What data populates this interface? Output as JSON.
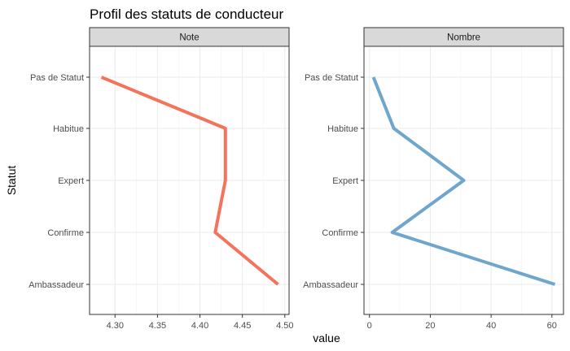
{
  "chart_data": {
    "type": "line",
    "title": "Profil des  statuts de conducteur",
    "xlabel": "value",
    "ylabel": "Statut",
    "categories": [
      "Ambassadeur",
      "Confirme",
      "Expert",
      "Habitue",
      "Pas de Statut"
    ],
    "grid": true,
    "legend": "none",
    "panels": [
      {
        "name": "Note",
        "color": "#f4735b",
        "xlim": [
          4.27,
          4.505
        ],
        "xticks": [
          4.3,
          4.35,
          4.4,
          4.45,
          4.5
        ],
        "xtick_labels": [
          "4.30",
          "4.35",
          "4.40",
          "4.45",
          "4.50"
        ],
        "values": [
          4.492,
          4.418,
          4.43,
          4.43,
          4.284
        ]
      },
      {
        "name": "Nombre",
        "color": "#6ea6cd",
        "xlim": [
          -1.8,
          63.8
        ],
        "xticks": [
          0,
          20,
          40,
          60
        ],
        "xtick_labels": [
          "0",
          "20",
          "40",
          "60"
        ],
        "values": [
          61,
          7.5,
          31,
          8,
          1.3
        ]
      }
    ]
  }
}
